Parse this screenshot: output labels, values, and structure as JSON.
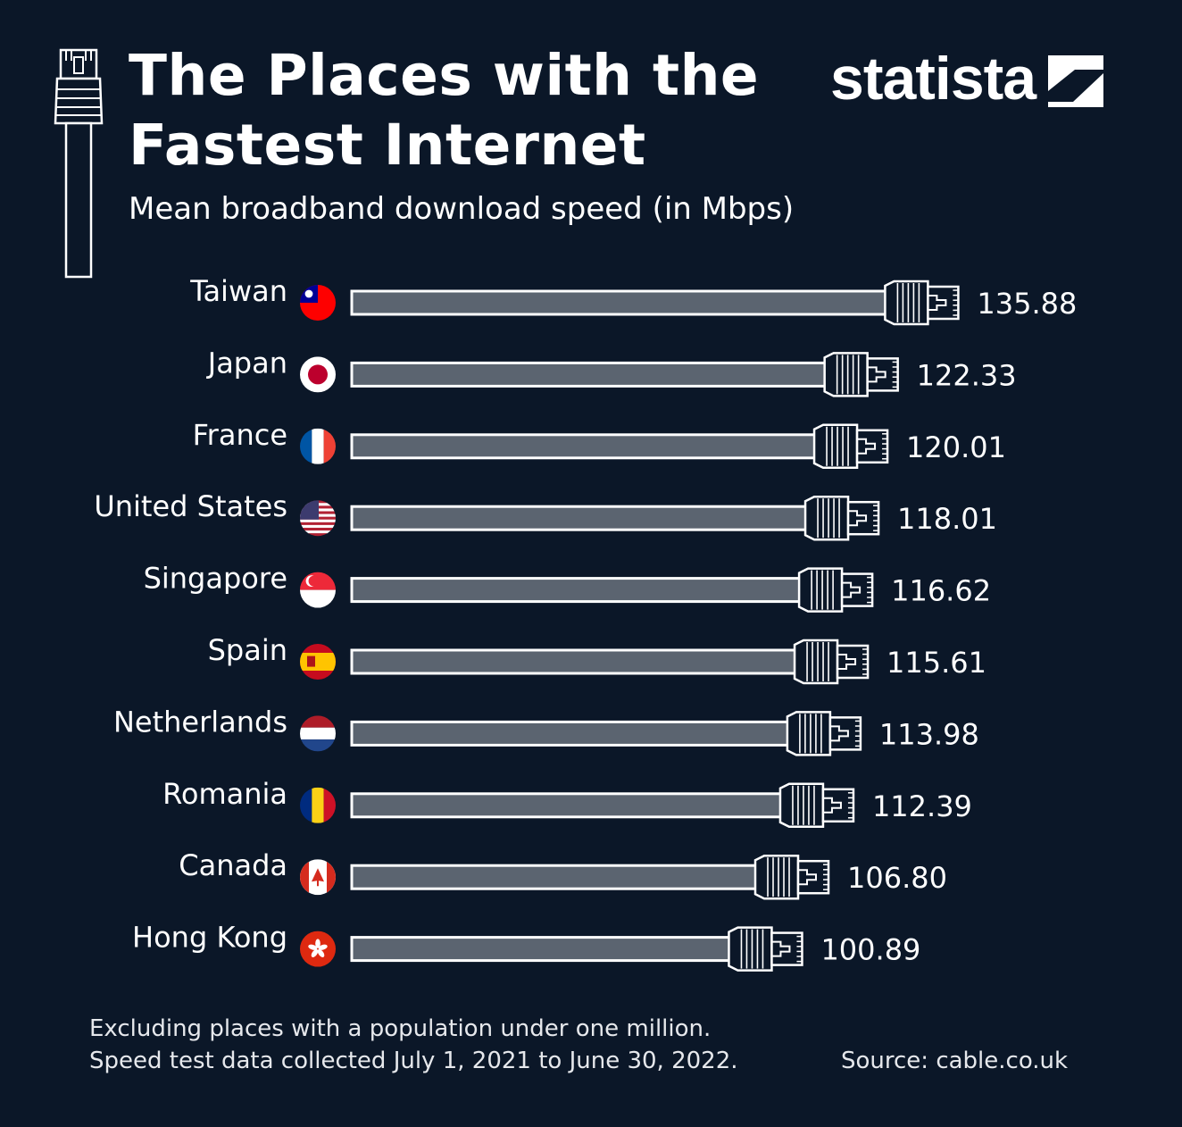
{
  "brand": {
    "name": "statista"
  },
  "colors": {
    "background": "#0b1728",
    "cable_fill": "#5b6470",
    "cable_stroke": "#ffffff",
    "text": "#ffffff"
  },
  "header": {
    "title_line1": "The Places with the",
    "title_line2": "Fastest Internet",
    "subtitle": "Mean broadband download speed (in Mbps)"
  },
  "chart_data": {
    "type": "bar",
    "orientation": "horizontal",
    "title": "The Places with the Fastest Internet",
    "subtitle": "Mean broadband download speed (in Mbps)",
    "unit": "Mbps",
    "categories": [
      "Taiwan",
      "Japan",
      "France",
      "United States",
      "Singapore",
      "Spain",
      "Netherlands",
      "Romania",
      "Canada",
      "Hong Kong"
    ],
    "values": [
      135.88,
      122.33,
      120.01,
      118.01,
      116.62,
      115.61,
      113.98,
      112.39,
      106.8,
      100.89
    ],
    "value_labels": [
      "135.88",
      "122.33",
      "120.01",
      "118.01",
      "116.62",
      "115.61",
      "113.98",
      "112.39",
      "106.80",
      "100.89"
    ],
    "flags": [
      "flag-taiwan-icon",
      "flag-japan-icon",
      "flag-france-icon",
      "flag-united-states-icon",
      "flag-singapore-icon",
      "flag-spain-icon",
      "flag-netherlands-icon",
      "flag-romania-icon",
      "flag-canada-icon",
      "flag-hong-kong-icon"
    ],
    "xlim": [
      0,
      140
    ],
    "grid": false,
    "legend": "none"
  },
  "footer": {
    "note_line1": "Excluding places with a population under one million.",
    "note_line2": "Speed test data collected July 1, 2021 to June 30, 2022.",
    "source": "Source: cable.co.uk"
  }
}
